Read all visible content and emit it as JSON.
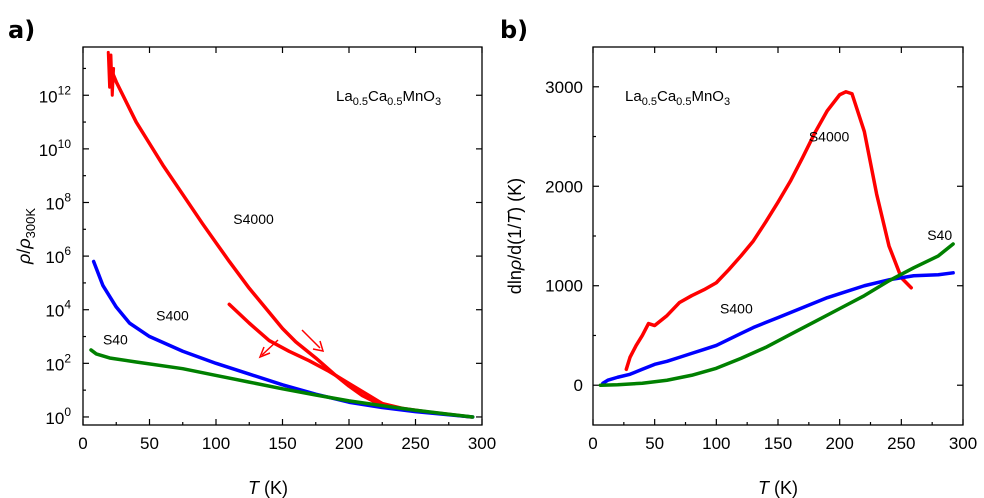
{
  "colors": {
    "S4000": "#ff0000",
    "S400": "#0000ff",
    "S40": "#008000"
  },
  "chart_data": [
    {
      "panel": "a)",
      "type": "line",
      "annotation": {
        "prefix": "La",
        "s1": "0.5",
        "mid": "Ca",
        "s2": "0.5",
        "mid2": "MnO",
        "s3": "3"
      },
      "xlabel": {
        "var": "T",
        "unit": " (K)"
      },
      "ylabel": {
        "var1": "ρ",
        "slash": "/",
        "var2": "ρ",
        "sub": "300K"
      },
      "xlim": [
        0,
        300
      ],
      "ylim_log10": [
        -0.3,
        13.8
      ],
      "yscale": "log",
      "xticks": [
        "0",
        "50",
        "100",
        "150",
        "200",
        "250",
        "300"
      ],
      "yticks": [
        {
          "base": "10",
          "exp": "0"
        },
        {
          "base": "10",
          "exp": "2"
        },
        {
          "base": "10",
          "exp": "4"
        },
        {
          "base": "10",
          "exp": "6"
        },
        {
          "base": "10",
          "exp": "8"
        },
        {
          "base": "10",
          "exp": "10"
        },
        {
          "base": "10",
          "exp": "12"
        }
      ],
      "series": [
        {
          "name": "S4000",
          "label_x": 113,
          "label_log": 7.2,
          "x": [
            20,
            25,
            30,
            40,
            50,
            60,
            75,
            90,
            100,
            110,
            125,
            140,
            150,
            160,
            175,
            190,
            200,
            210,
            222
          ],
          "log10": [
            13.1,
            12.5,
            12.0,
            11.0,
            10.2,
            9.4,
            8.3,
            7.2,
            6.5,
            5.8,
            4.8,
            3.9,
            3.3,
            2.8,
            2.2,
            1.55,
            1.15,
            0.8,
            0.5
          ]
        },
        {
          "name": "S4000",
          "x": [
            110,
            125,
            140,
            155,
            170,
            185,
            200,
            215,
            225,
            240,
            260,
            280,
            292
          ],
          "log10": [
            4.2,
            3.5,
            2.85,
            2.45,
            2.1,
            1.7,
            1.25,
            0.8,
            0.5,
            0.32,
            0.18,
            0.07,
            0.0
          ]
        },
        {
          "name": "S400",
          "label_x": 55,
          "label_log": 3.6,
          "x": [
            8,
            15,
            25,
            35,
            50,
            75,
            100,
            125,
            150,
            175,
            200,
            225,
            250,
            275,
            293
          ],
          "log10": [
            5.8,
            4.9,
            4.1,
            3.5,
            3.0,
            2.45,
            2.0,
            1.6,
            1.2,
            0.85,
            0.55,
            0.35,
            0.2,
            0.08,
            0.0
          ]
        },
        {
          "name": "S40",
          "label_x": 15,
          "label_log": 2.7,
          "x": [
            6,
            10,
            20,
            40,
            75,
            100,
            125,
            150,
            175,
            200,
            225,
            250,
            275,
            293
          ],
          "log10": [
            2.5,
            2.35,
            2.2,
            2.05,
            1.8,
            1.55,
            1.3,
            1.05,
            0.82,
            0.6,
            0.42,
            0.25,
            0.1,
            0.0
          ]
        }
      ]
    },
    {
      "panel": "b)",
      "type": "line",
      "annotation": {
        "prefix": "La",
        "s1": "0.5",
        "mid": "Ca",
        "s2": "0.5",
        "mid2": "MnO",
        "s3": "3"
      },
      "xlabel": {
        "var": "T",
        "unit": " (K)"
      },
      "ylabel": {
        "pre": "dln",
        "var1": "ρ",
        "mid": "/d(1/",
        "var2": "T",
        "post": ") (K)"
      },
      "xlim": [
        0,
        300
      ],
      "ylim": [
        -400,
        3400
      ],
      "xticks": [
        "0",
        "50",
        "100",
        "150",
        "200",
        "250",
        "300"
      ],
      "yticks": [
        "0",
        "1000",
        "2000",
        "3000"
      ],
      "series": [
        {
          "name": "S4000",
          "label_x": 175,
          "label_y": 2450,
          "x": [
            27,
            30,
            35,
            40,
            45,
            50,
            60,
            70,
            80,
            90,
            100,
            110,
            120,
            130,
            140,
            150,
            160,
            170,
            180,
            190,
            200,
            205,
            210,
            220,
            230,
            240,
            250,
            258
          ],
          "y": [
            160,
            280,
            400,
            500,
            620,
            600,
            700,
            830,
            900,
            960,
            1030,
            1160,
            1300,
            1450,
            1640,
            1840,
            2050,
            2290,
            2540,
            2760,
            2920,
            2950,
            2930,
            2550,
            1920,
            1400,
            1080,
            980
          ]
        },
        {
          "name": "S400",
          "label_x": 103,
          "label_y": 720,
          "x": [
            8,
            12,
            20,
            30,
            40,
            50,
            60,
            70,
            80,
            90,
            100,
            110,
            120,
            130,
            140,
            150,
            160,
            170,
            180,
            190,
            200,
            220,
            240,
            260,
            280,
            292
          ],
          "y": [
            20,
            50,
            80,
            110,
            160,
            210,
            240,
            280,
            320,
            360,
            400,
            460,
            520,
            580,
            630,
            680,
            730,
            780,
            830,
            880,
            920,
            1000,
            1060,
            1100,
            1110,
            1130
          ]
        },
        {
          "name": "S40",
          "label_x": 271,
          "label_y": 1460,
          "x": [
            6,
            20,
            40,
            60,
            80,
            100,
            120,
            140,
            160,
            180,
            200,
            220,
            240,
            260,
            280,
            292
          ],
          "y": [
            0,
            5,
            20,
            50,
            100,
            170,
            270,
            380,
            510,
            640,
            770,
            900,
            1050,
            1180,
            1300,
            1420
          ]
        }
      ]
    }
  ]
}
